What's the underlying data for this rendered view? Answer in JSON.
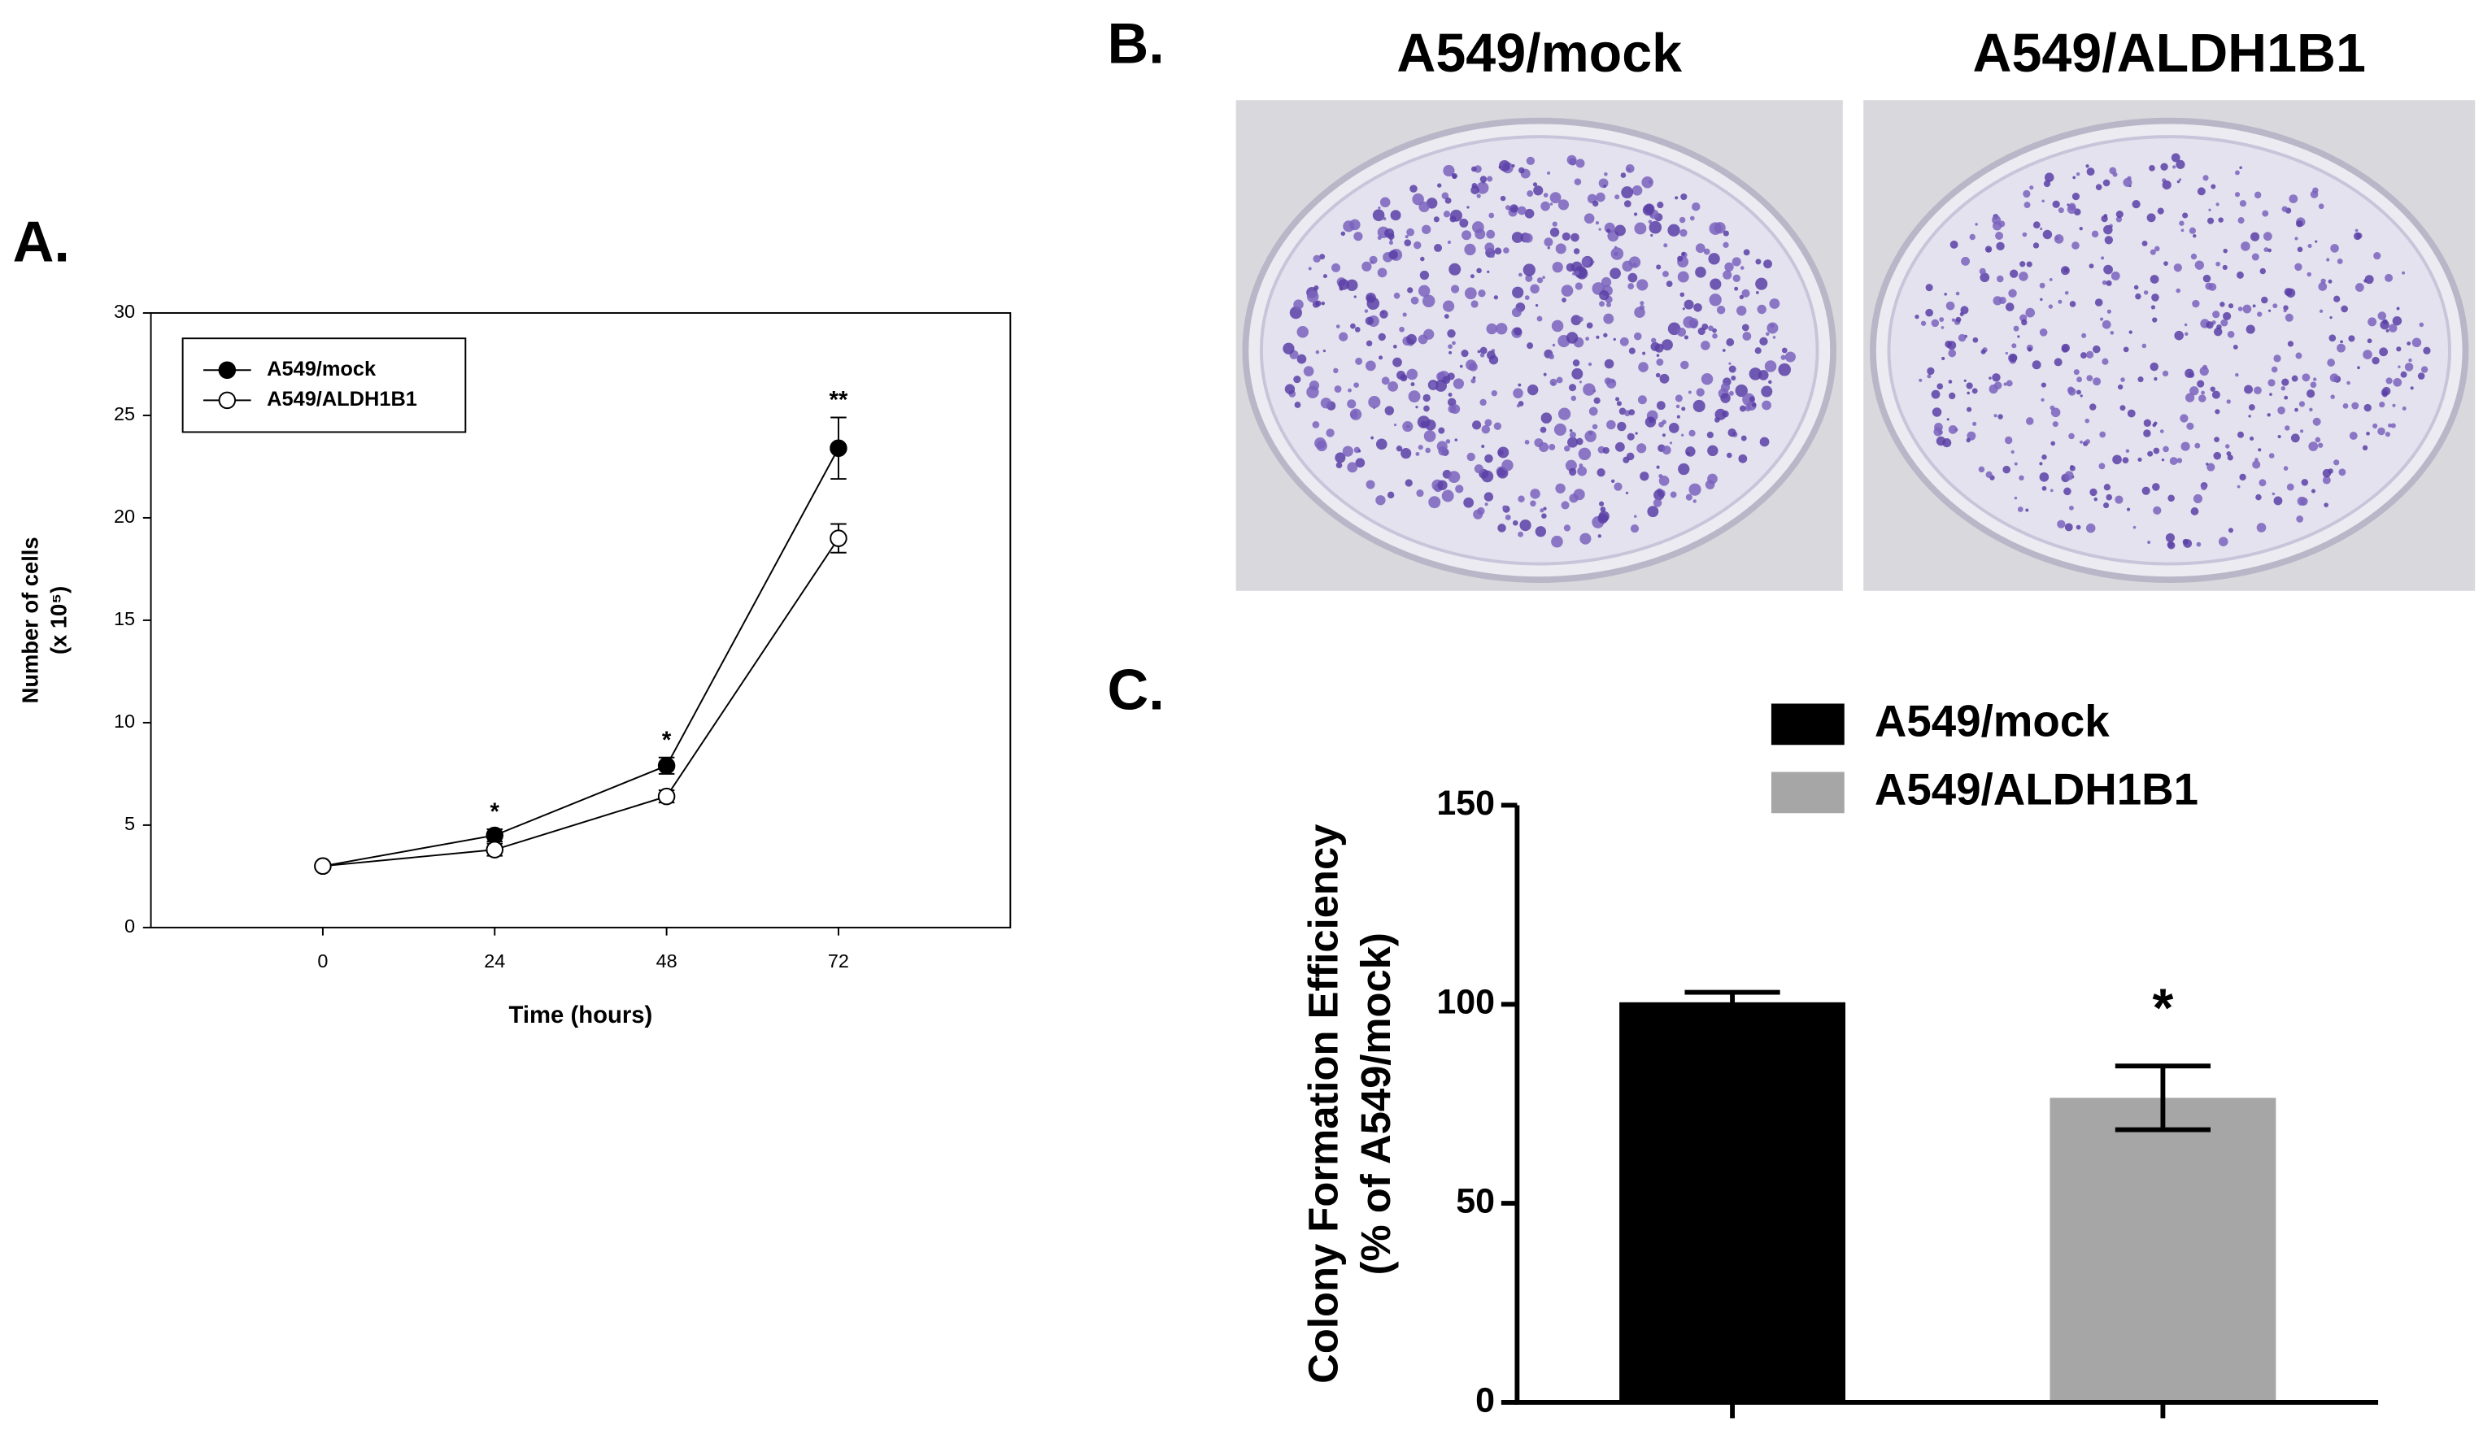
{
  "chart_data": [
    {
      "type": "line",
      "panel": "A.",
      "x": [
        0,
        24,
        48,
        72
      ],
      "series": [
        {
          "name": "A549/mock",
          "color": "#000000",
          "values": [
            3.0,
            4.5,
            7.9,
            23.4
          ],
          "errors": [
            0.1,
            0.3,
            0.4,
            1.5
          ]
        },
        {
          "name": "A549/ALDH1B1",
          "color": "#ffffff",
          "values": [
            3.0,
            3.8,
            6.4,
            19.0
          ],
          "errors": [
            0.1,
            0.3,
            0.3,
            0.7
          ]
        }
      ],
      "significance": [
        null,
        "*",
        "*",
        "**"
      ],
      "xlim": [
        -24,
        96
      ],
      "xticks": [
        0,
        24,
        48,
        72
      ],
      "ylim": [
        0,
        30
      ],
      "yticks": [
        0,
        5,
        10,
        15,
        20,
        25,
        30
      ],
      "xlabel": "Time (hours)",
      "ylabel": [
        "Number of cells",
        "(x 10⁵)"
      ],
      "legend": "upper left"
    },
    {
      "type": "image",
      "panel": "B.",
      "titles": [
        "A549/mock",
        "A549/ALDH1B1"
      ]
    },
    {
      "type": "bar",
      "panel": "C.",
      "categories": [
        null,
        null
      ],
      "series": [
        {
          "name": "A549/mock",
          "color": "#000000",
          "values": [
            100.5,
            null
          ],
          "errors": [
            2.5,
            null
          ]
        },
        {
          "name": "A549/ALDH1B1",
          "color": "#a6a6a6",
          "values": [
            null,
            76.5
          ],
          "errors": [
            null,
            8
          ]
        }
      ],
      "significance": [
        null,
        "*"
      ],
      "ylim": [
        0,
        150
      ],
      "yticks": [
        0,
        50,
        100,
        150
      ],
      "ylabel": [
        "Colony Formation Efficiency",
        "(% of A549/mock)"
      ],
      "legend": "upper right"
    }
  ]
}
